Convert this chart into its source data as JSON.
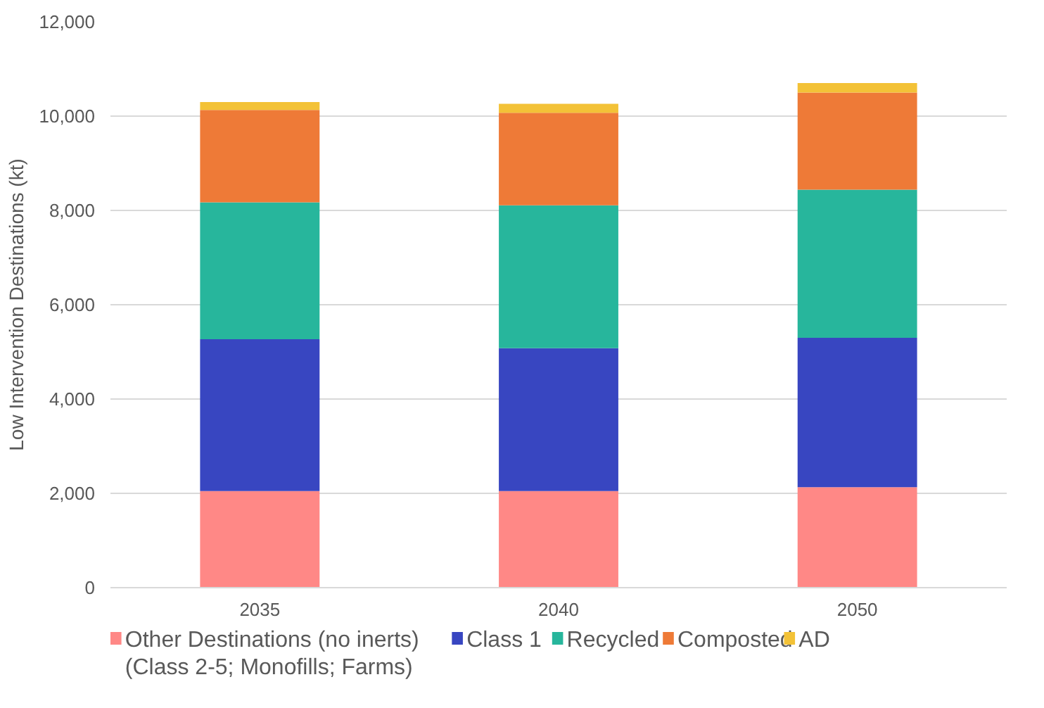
{
  "chart_data": {
    "type": "bar",
    "stacked": true,
    "ylabel": "Low Intervention Destinations (kt)",
    "categories": [
      "2035",
      "2040",
      "2050"
    ],
    "series": [
      {
        "name": "Other Destinations (no inerts)\n(Class 2-5; Monofills; Farms)",
        "color": "#ff8886",
        "values": [
          2050,
          2050,
          2130
        ]
      },
      {
        "name": "Class 1",
        "color": "#3846c1",
        "values": [
          3220,
          3030,
          3170
        ]
      },
      {
        "name": "Recycled",
        "color": "#27b69c",
        "values": [
          2900,
          3030,
          3140
        ]
      },
      {
        "name": "Composted",
        "color": "#ee7a37",
        "values": [
          1960,
          1960,
          2060
        ]
      },
      {
        "name": "AD",
        "color": "#f3c237",
        "values": [
          170,
          190,
          200
        ]
      }
    ],
    "ylim": [
      0,
      12000
    ],
    "yticks": [
      0,
      {
        "value": 2000,
        "label": "2,000"
      },
      {
        "value": 4000,
        "label": "4,000"
      },
      {
        "value": 6000,
        "label": "6,000"
      },
      {
        "value": 8000,
        "label": "8,000"
      },
      {
        "value": 10000,
        "label": "10,000"
      },
      {
        "value": 12000,
        "label": "12,000"
      }
    ],
    "grid": "y",
    "legend": "bottom"
  }
}
